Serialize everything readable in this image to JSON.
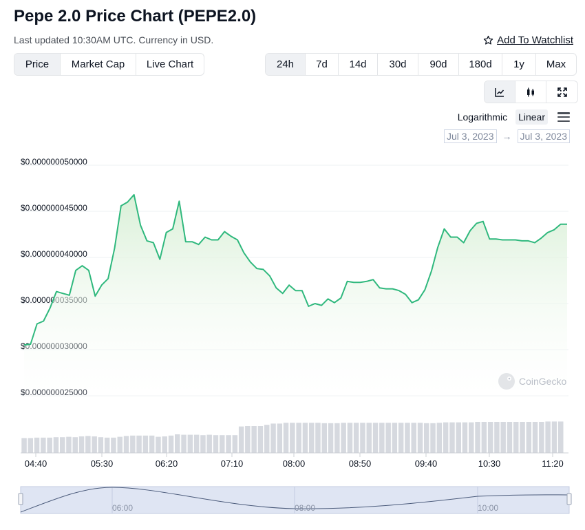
{
  "header": {
    "title": "Pepe 2.0 Price Chart (PEPE2.0)",
    "subtitle": "Last updated 10:30AM UTC. Currency in USD.",
    "watchlist_label": "Add To Watchlist"
  },
  "tabs": [
    "Price",
    "Market Cap",
    "Live Chart"
  ],
  "ranges": [
    "24h",
    "7d",
    "14d",
    "30d",
    "90d",
    "180d",
    "1y",
    "Max"
  ],
  "scale": {
    "log_label": "Logarithmic",
    "linear_label": "Linear"
  },
  "date_range": {
    "from": "Jul 3, 2023",
    "to": "Jul 3, 2023"
  },
  "icons": {
    "line_view": "line-chart-icon",
    "candle_view": "candlestick-icon",
    "fullscreen": "fullscreen-icon",
    "menu": "menu-icon",
    "watchlist": "star-icon",
    "watermark": "coingecko-logo-icon"
  },
  "watermark": "CoinGecko",
  "colors": {
    "line": "#2fb87d",
    "fill_top": "#dff3dd",
    "volume": "#d6d9df",
    "navigator": "#cfd8ec"
  },
  "chart_data": {
    "type": "area",
    "ylim": [
      2.5e-08,
      5e-08
    ],
    "y_tick_labels": [
      "$0.000000050000",
      "$0.000000045000",
      "$0.000000040000",
      "$0.000000035000",
      "$0.000000030000",
      "$0.000000025000"
    ],
    "y_ticks": [
      5e-08,
      4.5e-08,
      4e-08,
      3.5e-08,
      3e-08,
      2.5e-08
    ],
    "x_tick_labels": [
      "04:40",
      "05:30",
      "06:20",
      "07:10",
      "08:00",
      "08:50",
      "09:40",
      "10:30",
      "11:20"
    ],
    "navigator_labels": [
      "06:00",
      "08:00",
      "10:00"
    ],
    "price": [
      3.05,
      3.06,
      3.28,
      3.31,
      3.45,
      3.63,
      3.61,
      3.59,
      3.86,
      3.91,
      3.86,
      3.58,
      3.7,
      3.77,
      4.1,
      4.56,
      4.6,
      4.68,
      4.35,
      4.18,
      4.16,
      3.98,
      4.27,
      4.31,
      4.61,
      4.17,
      4.17,
      4.14,
      4.22,
      4.19,
      4.19,
      4.28,
      4.23,
      4.19,
      4.05,
      3.95,
      3.88,
      3.87,
      3.8,
      3.67,
      3.61,
      3.7,
      3.64,
      3.64,
      3.47,
      3.5,
      3.48,
      3.55,
      3.51,
      3.56,
      3.74,
      3.73,
      3.73,
      3.74,
      3.76,
      3.67,
      3.66,
      3.66,
      3.64,
      3.6,
      3.51,
      3.54,
      3.65,
      3.85,
      4.11,
      4.31,
      4.22,
      4.22,
      4.16,
      4.29,
      4.37,
      4.39,
      4.2,
      4.2,
      4.19,
      4.19,
      4.19,
      4.18,
      4.18,
      4.16,
      4.21,
      4.27,
      4.3,
      4.36,
      4.36
    ],
    "price_unit_note": "values x 1e-8 USD",
    "volume": [
      0.36,
      0.36,
      0.37,
      0.37,
      0.37,
      0.38,
      0.38,
      0.39,
      0.38,
      0.4,
      0.41,
      0.4,
      0.38,
      0.37,
      0.37,
      0.39,
      0.41,
      0.42,
      0.42,
      0.42,
      0.42,
      0.39,
      0.4,
      0.42,
      0.45,
      0.44,
      0.44,
      0.44,
      0.43,
      0.44,
      0.43,
      0.43,
      0.43,
      0.43,
      0.64,
      0.65,
      0.65,
      0.65,
      0.68,
      0.71,
      0.71,
      0.73,
      0.73,
      0.73,
      0.73,
      0.73,
      0.73,
      0.72,
      0.72,
      0.72,
      0.73,
      0.73,
      0.73,
      0.73,
      0.73,
      0.73,
      0.73,
      0.73,
      0.73,
      0.73,
      0.73,
      0.73,
      0.73,
      0.72,
      0.72,
      0.73,
      0.74,
      0.74,
      0.74,
      0.74,
      0.74,
      0.75,
      0.75,
      0.75,
      0.75,
      0.75,
      0.75,
      0.75,
      0.75,
      0.75,
      0.75,
      0.75,
      0.76,
      0.76,
      0.76
    ],
    "grid": true,
    "legend": "none"
  }
}
